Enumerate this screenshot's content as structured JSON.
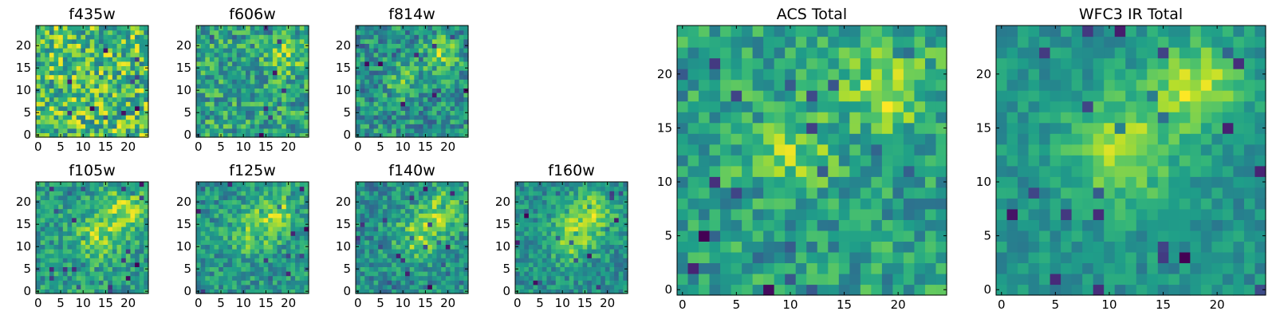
{
  "chart_data": [
    {
      "type": "heatmap",
      "title": "f435w",
      "xlabel": "",
      "ylabel": "",
      "colormap": "viridis",
      "grid_size": 25,
      "xlim": [
        0,
        24
      ],
      "ylim": [
        0,
        24
      ],
      "x_ticks": [
        "0",
        "5",
        "10",
        "15",
        "20"
      ],
      "y_ticks": [
        "0",
        "5",
        "10",
        "15",
        "20"
      ],
      "noise": 0.75,
      "blobs": []
    },
    {
      "type": "heatmap",
      "title": "f606w",
      "xlabel": "",
      "ylabel": "",
      "colormap": "viridis",
      "grid_size": 25,
      "xlim": [
        0,
        24
      ],
      "ylim": [
        0,
        24
      ],
      "x_ticks": [
        "0",
        "5",
        "10",
        "15",
        "20"
      ],
      "y_ticks": [
        "0",
        "5",
        "10",
        "15",
        "20"
      ],
      "noise": 0.7,
      "blobs": [
        [
          19,
          18,
          0.4,
          4
        ]
      ]
    },
    {
      "type": "heatmap",
      "title": "f814w",
      "xlabel": "",
      "ylabel": "",
      "colormap": "viridis",
      "grid_size": 25,
      "xlim": [
        0,
        24
      ],
      "ylim": [
        0,
        24
      ],
      "x_ticks": [
        "0",
        "5",
        "10",
        "15",
        "20"
      ],
      "y_ticks": [
        "0",
        "5",
        "10",
        "15",
        "20"
      ],
      "noise": 0.65,
      "blobs": [
        [
          19,
          18,
          0.5,
          4
        ],
        [
          10,
          12,
          0.3,
          4
        ]
      ]
    },
    {
      "type": "heatmap",
      "title": "f105w",
      "xlabel": "",
      "ylabel": "",
      "colormap": "viridis",
      "grid_size": 25,
      "xlim": [
        0,
        24
      ],
      "ylim": [
        0,
        24
      ],
      "x_ticks": [
        "0",
        "5",
        "10",
        "15",
        "20"
      ],
      "y_ticks": [
        "0",
        "5",
        "10",
        "15",
        "20"
      ],
      "noise": 0.5,
      "blobs": [
        [
          19,
          18,
          0.5,
          5
        ],
        [
          13,
          12,
          0.4,
          5
        ]
      ]
    },
    {
      "type": "heatmap",
      "title": "f125w",
      "xlabel": "",
      "ylabel": "",
      "colormap": "viridis",
      "grid_size": 25,
      "xlim": [
        0,
        24
      ],
      "ylim": [
        0,
        24
      ],
      "x_ticks": [
        "0",
        "5",
        "10",
        "15",
        "20"
      ],
      "y_ticks": [
        "0",
        "5",
        "10",
        "15",
        "20"
      ],
      "noise": 0.5,
      "blobs": [
        [
          18,
          18,
          0.45,
          5
        ],
        [
          12,
          13,
          0.4,
          5
        ]
      ]
    },
    {
      "type": "heatmap",
      "title": "f140w",
      "xlabel": "",
      "ylabel": "",
      "colormap": "viridis",
      "grid_size": 25,
      "xlim": [
        0,
        24
      ],
      "ylim": [
        0,
        24
      ],
      "x_ticks": [
        "0",
        "5",
        "10",
        "15",
        "20"
      ],
      "y_ticks": [
        "0",
        "5",
        "10",
        "15",
        "20"
      ],
      "noise": 0.5,
      "blobs": [
        [
          19,
          18,
          0.5,
          5
        ],
        [
          13,
          12,
          0.45,
          5
        ]
      ]
    },
    {
      "type": "heatmap",
      "title": "f160w",
      "xlabel": "",
      "ylabel": "",
      "colormap": "viridis",
      "grid_size": 25,
      "xlim": [
        0,
        24
      ],
      "ylim": [
        0,
        24
      ],
      "x_ticks": [
        "0",
        "5",
        "10",
        "15",
        "20"
      ],
      "y_ticks": [
        "0",
        "5",
        "10",
        "15",
        "20"
      ],
      "noise": 0.45,
      "blobs": [
        [
          17,
          18,
          0.5,
          5
        ],
        [
          12,
          12,
          0.55,
          5
        ]
      ]
    },
    {
      "type": "heatmap",
      "title": "ACS Total",
      "xlabel": "",
      "ylabel": "",
      "colormap": "viridis",
      "grid_size": 25,
      "xlim": [
        0,
        24
      ],
      "ylim": [
        0,
        24
      ],
      "x_ticks": [
        "0",
        "5",
        "10",
        "15",
        "20"
      ],
      "y_ticks": [
        "0",
        "5",
        "10",
        "15",
        "20"
      ],
      "noise": 0.5,
      "blobs": [
        [
          19,
          19,
          0.5,
          4
        ],
        [
          10,
          13,
          0.35,
          4
        ]
      ]
    },
    {
      "type": "heatmap",
      "title": "WFC3 IR Total",
      "xlabel": "",
      "ylabel": "",
      "colormap": "viridis",
      "grid_size": 25,
      "xlim": [
        0,
        24
      ],
      "ylim": [
        0,
        24
      ],
      "x_ticks": [
        "0",
        "5",
        "10",
        "15",
        "20"
      ],
      "y_ticks": [
        "0",
        "5",
        "10",
        "15",
        "20"
      ],
      "noise": 0.3,
      "blobs": [
        [
          18,
          19,
          0.6,
          4
        ],
        [
          11,
          13,
          0.55,
          5
        ]
      ]
    }
  ]
}
